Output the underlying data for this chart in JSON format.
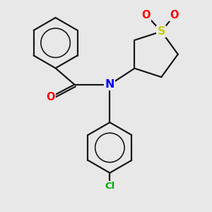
{
  "background_color": "#e8e8e8",
  "bond_color": "#1a1a1a",
  "bond_width": 1.6,
  "atom_colors": {
    "O": "#ff0000",
    "N": "#0000ff",
    "S": "#cccc00",
    "Cl": "#00aa00",
    "C": "#1a1a1a"
  },
  "font_size_atom": 10.5,
  "font_size_cl": 9.5,
  "figsize": [
    3.0,
    3.0
  ],
  "dpi": 100
}
